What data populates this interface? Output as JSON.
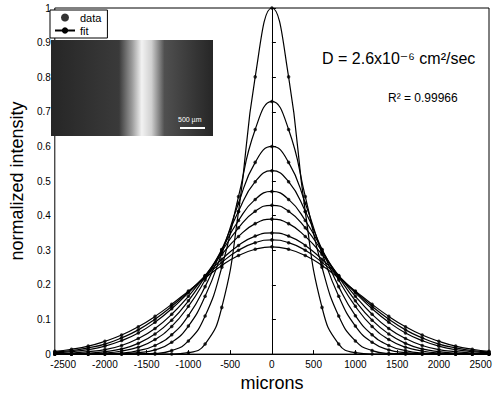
{
  "chart_data": {
    "type": "line",
    "x_label": "microns",
    "y_label": "normalized intensity",
    "annotations": [
      "D = 2.6x10⁻⁶ cm²/sec",
      "R² = 0.99966",
      "500 µm"
    ],
    "x": [
      -2600,
      -2400,
      -2200,
      -2000,
      -1800,
      -1600,
      -1400,
      -1200,
      -1000,
      -800,
      -600,
      -400,
      -200,
      0,
      200,
      400,
      600,
      800,
      1000,
      1200,
      1400,
      1600,
      1800,
      2000,
      2200,
      2400,
      2600
    ],
    "xlim": [
      -2600,
      2600
    ],
    "xticks": [
      -2500,
      -2000,
      -1500,
      -1000,
      -500,
      0,
      500,
      1000,
      1500,
      2000,
      2500
    ],
    "ylim": [
      0,
      1
    ],
    "yticks": [
      0,
      0.1,
      0.2,
      0.3,
      0.4,
      0.5,
      0.6,
      0.7,
      0.8,
      0.9,
      1
    ],
    "grid": false,
    "legend": "upper left",
    "series": [
      {
        "name": "data",
        "type": "scatter",
        "marker": "circle",
        "color": "#000000",
        "values": [
          0,
          0,
          0,
          0,
          0,
          0,
          0,
          0,
          0.004,
          0.029,
          0.135,
          0.411,
          0.801,
          1,
          0.801,
          0.411,
          0.135,
          0.029,
          0.004,
          0,
          0,
          0,
          0,
          0,
          0,
          0,
          0
        ]
      },
      {
        "name": "data",
        "type": "scatter",
        "marker": "circle",
        "color": "#000000",
        "values": [
          0,
          0,
          0,
          0,
          0,
          0.001,
          0.002,
          0.01,
          0.038,
          0.11,
          0.251,
          0.455,
          0.649,
          0.73,
          0.649,
          0.455,
          0.251,
          0.11,
          0.038,
          0.01,
          0.002,
          0.001,
          0,
          0,
          0,
          0,
          0
        ]
      },
      {
        "name": "data",
        "type": "scatter",
        "marker": "circle",
        "color": "#000000",
        "values": [
          0,
          0,
          0,
          0,
          0.001,
          0.004,
          0.012,
          0.034,
          0.081,
          0.167,
          0.292,
          0.436,
          0.554,
          0.6,
          0.554,
          0.436,
          0.292,
          0.167,
          0.081,
          0.034,
          0.012,
          0.004,
          0.001,
          0,
          0,
          0,
          0
        ]
      },
      {
        "name": "data",
        "type": "scatter",
        "marker": "circle",
        "color": "#000000",
        "values": [
          0,
          0,
          0,
          0.001,
          0.003,
          0.01,
          0.025,
          0.056,
          0.111,
          0.195,
          0.302,
          0.413,
          0.498,
          0.53,
          0.498,
          0.413,
          0.302,
          0.195,
          0.111,
          0.056,
          0.025,
          0.01,
          0.003,
          0.001,
          0,
          0,
          0
        ]
      },
      {
        "name": "data",
        "type": "scatter",
        "marker": "circle",
        "color": "#000000",
        "values": [
          0,
          0,
          0.001,
          0.003,
          0.009,
          0.02,
          0.042,
          0.08,
          0.138,
          0.214,
          0.302,
          0.386,
          0.447,
          0.47,
          0.447,
          0.386,
          0.302,
          0.214,
          0.138,
          0.08,
          0.042,
          0.02,
          0.009,
          0.003,
          0.001,
          0,
          0
        ]
      },
      {
        "name": "data",
        "type": "scatter",
        "marker": "circle",
        "color": "#000000",
        "values": [
          0,
          0.001,
          0.003,
          0.007,
          0.015,
          0.031,
          0.058,
          0.098,
          0.154,
          0.223,
          0.297,
          0.365,
          0.413,
          0.43,
          0.413,
          0.365,
          0.297,
          0.223,
          0.154,
          0.098,
          0.058,
          0.031,
          0.015,
          0.007,
          0.003,
          0.001,
          0
        ]
      },
      {
        "name": "data",
        "type": "scatter",
        "marker": "circle",
        "color": "#000000",
        "values": [
          0.001,
          0.003,
          0.007,
          0.013,
          0.025,
          0.045,
          0.074,
          0.115,
          0.167,
          0.227,
          0.288,
          0.34,
          0.377,
          0.39,
          0.377,
          0.34,
          0.288,
          0.227,
          0.167,
          0.115,
          0.074,
          0.045,
          0.025,
          0.013,
          0.007,
          0.003,
          0.001
        ]
      },
      {
        "name": "data",
        "type": "scatter",
        "marker": "circle",
        "color": "#000000",
        "values": [
          0.004,
          0.007,
          0.013,
          0.023,
          0.039,
          0.061,
          0.092,
          0.131,
          0.177,
          0.226,
          0.274,
          0.314,
          0.341,
          0.35,
          0.341,
          0.314,
          0.274,
          0.226,
          0.177,
          0.131,
          0.092,
          0.061,
          0.039,
          0.023,
          0.013,
          0.007,
          0.004
        ]
      },
      {
        "name": "data",
        "type": "scatter",
        "marker": "circle",
        "color": "#000000",
        "values": [
          0.006,
          0.01,
          0.018,
          0.029,
          0.047,
          0.07,
          0.101,
          0.138,
          0.18,
          0.224,
          0.265,
          0.3,
          0.322,
          0.33,
          0.322,
          0.3,
          0.265,
          0.224,
          0.18,
          0.138,
          0.101,
          0.07,
          0.047,
          0.029,
          0.018,
          0.01,
          0.006
        ]
      },
      {
        "name": "data",
        "type": "scatter",
        "marker": "circle",
        "color": "#000000",
        "values": [
          0.008,
          0.014,
          0.023,
          0.037,
          0.055,
          0.079,
          0.109,
          0.144,
          0.182,
          0.22,
          0.256,
          0.285,
          0.303,
          0.31,
          0.303,
          0.285,
          0.256,
          0.22,
          0.182,
          0.144,
          0.109,
          0.079,
          0.055,
          0.037,
          0.023,
          0.014,
          0.008
        ]
      },
      {
        "name": "fit",
        "type": "line",
        "line_style": "solid",
        "color": "#000000",
        "values": [
          0,
          0,
          0,
          0,
          0,
          0,
          0,
          0,
          0.004,
          0.029,
          0.135,
          0.411,
          0.801,
          1,
          0.801,
          0.411,
          0.135,
          0.029,
          0.004,
          0,
          0,
          0,
          0,
          0,
          0,
          0,
          0
        ]
      },
      {
        "name": "fit",
        "type": "line",
        "line_style": "solid",
        "color": "#000000",
        "values": [
          0,
          0,
          0,
          0,
          0,
          0.001,
          0.002,
          0.01,
          0.038,
          0.11,
          0.251,
          0.455,
          0.649,
          0.73,
          0.649,
          0.455,
          0.251,
          0.11,
          0.038,
          0.01,
          0.002,
          0.001,
          0,
          0,
          0,
          0,
          0
        ]
      },
      {
        "name": "fit",
        "type": "line",
        "line_style": "solid",
        "color": "#000000",
        "values": [
          0,
          0,
          0,
          0,
          0.001,
          0.004,
          0.012,
          0.034,
          0.081,
          0.167,
          0.292,
          0.436,
          0.554,
          0.6,
          0.554,
          0.436,
          0.292,
          0.167,
          0.081,
          0.034,
          0.012,
          0.004,
          0.001,
          0,
          0,
          0,
          0
        ]
      },
      {
        "name": "fit",
        "type": "line",
        "line_style": "solid",
        "color": "#000000",
        "values": [
          0,
          0,
          0,
          0.001,
          0.003,
          0.01,
          0.025,
          0.056,
          0.111,
          0.195,
          0.302,
          0.413,
          0.498,
          0.53,
          0.498,
          0.413,
          0.302,
          0.195,
          0.111,
          0.056,
          0.025,
          0.01,
          0.003,
          0.001,
          0,
          0,
          0
        ]
      },
      {
        "name": "fit",
        "type": "line",
        "line_style": "solid",
        "color": "#000000",
        "values": [
          0,
          0,
          0.001,
          0.003,
          0.009,
          0.02,
          0.042,
          0.08,
          0.138,
          0.214,
          0.302,
          0.386,
          0.447,
          0.47,
          0.447,
          0.386,
          0.302,
          0.214,
          0.138,
          0.08,
          0.042,
          0.02,
          0.009,
          0.003,
          0.001,
          0,
          0
        ]
      },
      {
        "name": "fit",
        "type": "line",
        "line_style": "solid",
        "color": "#000000",
        "values": [
          0,
          0.001,
          0.003,
          0.007,
          0.015,
          0.031,
          0.058,
          0.098,
          0.154,
          0.223,
          0.297,
          0.365,
          0.413,
          0.43,
          0.413,
          0.365,
          0.297,
          0.223,
          0.154,
          0.098,
          0.058,
          0.031,
          0.015,
          0.007,
          0.003,
          0.001,
          0
        ]
      },
      {
        "name": "fit",
        "type": "line",
        "line_style": "solid",
        "color": "#000000",
        "values": [
          0.001,
          0.003,
          0.007,
          0.013,
          0.025,
          0.045,
          0.074,
          0.115,
          0.167,
          0.227,
          0.288,
          0.34,
          0.377,
          0.39,
          0.377,
          0.34,
          0.288,
          0.227,
          0.167,
          0.115,
          0.074,
          0.045,
          0.025,
          0.013,
          0.007,
          0.003,
          0.001
        ]
      },
      {
        "name": "fit",
        "type": "line",
        "line_style": "solid",
        "color": "#000000",
        "values": [
          0.004,
          0.007,
          0.013,
          0.023,
          0.039,
          0.061,
          0.092,
          0.131,
          0.177,
          0.226,
          0.274,
          0.314,
          0.341,
          0.35,
          0.341,
          0.314,
          0.274,
          0.226,
          0.177,
          0.131,
          0.092,
          0.061,
          0.039,
          0.023,
          0.013,
          0.007,
          0.004
        ]
      },
      {
        "name": "fit",
        "type": "line",
        "line_style": "solid",
        "color": "#000000",
        "values": [
          0.006,
          0.01,
          0.018,
          0.029,
          0.047,
          0.07,
          0.101,
          0.138,
          0.18,
          0.224,
          0.265,
          0.3,
          0.322,
          0.33,
          0.322,
          0.3,
          0.265,
          0.224,
          0.18,
          0.138,
          0.101,
          0.07,
          0.047,
          0.029,
          0.018,
          0.01,
          0.006
        ]
      },
      {
        "name": "fit",
        "type": "line",
        "line_style": "solid",
        "color": "#000000",
        "values": [
          0.008,
          0.014,
          0.023,
          0.037,
          0.055,
          0.079,
          0.109,
          0.144,
          0.182,
          0.22,
          0.256,
          0.285,
          0.303,
          0.31,
          0.303,
          0.285,
          0.256,
          0.22,
          0.182,
          0.144,
          0.109,
          0.079,
          0.055,
          0.037,
          0.023,
          0.014,
          0.008
        ]
      }
    ]
  }
}
